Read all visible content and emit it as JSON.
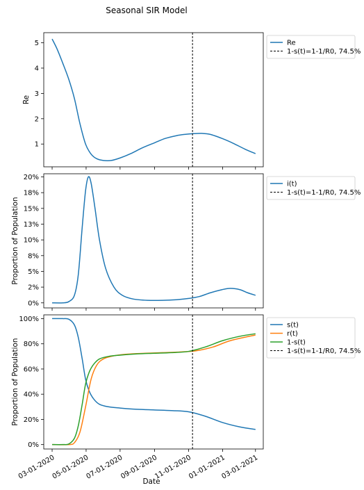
{
  "figure": {
    "title": "Seasonal SIR Model"
  },
  "colors": {
    "blue": "#1f77b4",
    "orange": "#ff7f0e",
    "green": "#2ca02c",
    "black": "#000000"
  },
  "chart_data": [
    {
      "type": "line",
      "ylabel": "Re",
      "ylim": [
        0.1,
        5.4
      ],
      "yticks": [
        1,
        2,
        3,
        4,
        5
      ],
      "ytick_labels": [
        "1",
        "2",
        "3",
        "4",
        "5"
      ],
      "legend": {
        "placement": "outside-right",
        "entries": [
          "Re",
          "1-s(t)=1-1/R0, 74.5%"
        ]
      },
      "vline": {
        "x": "2020-11-08",
        "label": "1-s(t)=1-1/R0, 74.5%"
      },
      "series": [
        {
          "name": "Re",
          "color": "#1f77b4",
          "points": [
            [
              "2020-03-01",
              5.15
            ],
            [
              "2020-03-10",
              4.75
            ],
            [
              "2020-03-20",
              4.2
            ],
            [
              "2020-03-31",
              3.55
            ],
            [
              "2020-04-10",
              2.8
            ],
            [
              "2020-04-20",
              1.8
            ],
            [
              "2020-04-30",
              1.0
            ],
            [
              "2020-05-10",
              0.6
            ],
            [
              "2020-05-20",
              0.42
            ],
            [
              "2020-06-01",
              0.35
            ],
            [
              "2020-06-15",
              0.35
            ],
            [
              "2020-07-01",
              0.45
            ],
            [
              "2020-07-20",
              0.62
            ],
            [
              "2020-08-10",
              0.85
            ],
            [
              "2020-09-01",
              1.05
            ],
            [
              "2020-09-20",
              1.22
            ],
            [
              "2020-10-10",
              1.33
            ],
            [
              "2020-10-25",
              1.38
            ],
            [
              "2020-11-10",
              1.41
            ],
            [
              "2020-11-25",
              1.42
            ],
            [
              "2020-12-10",
              1.38
            ],
            [
              "2020-12-31",
              1.22
            ],
            [
              "2021-01-20",
              1.03
            ],
            [
              "2021-02-10",
              0.8
            ],
            [
              "2021-03-01",
              0.62
            ]
          ]
        }
      ]
    },
    {
      "type": "line",
      "ylabel": "Proportion of Population",
      "ylim": [
        -0.008,
        0.205
      ],
      "yticks": [
        0,
        0.025,
        0.05,
        0.075,
        0.1,
        0.125,
        0.15,
        0.175,
        0.2
      ],
      "ytick_labels": [
        "0%",
        "2%",
        "5%",
        "8%",
        "10%",
        "13%",
        "15%",
        "18%",
        "20%"
      ],
      "legend": {
        "placement": "outside-right",
        "entries": [
          "i(t)",
          "1-s(t)=1-1/R0, 74.5%"
        ]
      },
      "vline": {
        "x": "2020-11-08",
        "label": "1-s(t)=1-1/R0, 74.5%"
      },
      "series": [
        {
          "name": "i(t)",
          "color": "#1f77b4",
          "points": [
            [
              "2020-03-01",
              0.0
            ],
            [
              "2020-03-20",
              0.0
            ],
            [
              "2020-03-31",
              0.002
            ],
            [
              "2020-04-10",
              0.012
            ],
            [
              "2020-04-17",
              0.045
            ],
            [
              "2020-04-24",
              0.12
            ],
            [
              "2020-04-30",
              0.178
            ],
            [
              "2020-05-05",
              0.2
            ],
            [
              "2020-05-10",
              0.19
            ],
            [
              "2020-05-17",
              0.15
            ],
            [
              "2020-05-25",
              0.1
            ],
            [
              "2020-06-05",
              0.055
            ],
            [
              "2020-06-20",
              0.025
            ],
            [
              "2020-07-05",
              0.012
            ],
            [
              "2020-07-25",
              0.006
            ],
            [
              "2020-08-20",
              0.004
            ],
            [
              "2020-09-15",
              0.004
            ],
            [
              "2020-10-10",
              0.005
            ],
            [
              "2020-11-01",
              0.007
            ],
            [
              "2020-11-20",
              0.01
            ],
            [
              "2020-12-10",
              0.016
            ],
            [
              "2020-12-31",
              0.021
            ],
            [
              "2021-01-15",
              0.023
            ],
            [
              "2021-02-01",
              0.021
            ],
            [
              "2021-02-15",
              0.016
            ],
            [
              "2021-03-01",
              0.012
            ]
          ]
        }
      ]
    },
    {
      "type": "line",
      "xlabel": "Date",
      "ylabel": "Proportion of Population",
      "ylim": [
        -0.035,
        1.03
      ],
      "yticks": [
        0,
        0.2,
        0.4,
        0.6,
        0.8,
        1.0
      ],
      "ytick_labels": [
        "0%",
        "20%",
        "40%",
        "60%",
        "80%",
        "100%"
      ],
      "legend": {
        "placement": "outside-right",
        "entries": [
          "s(t)",
          "r(t)",
          "1-s(t)",
          "1-s(t)=1-1/R0, 74.5%"
        ]
      },
      "vline": {
        "x": "2020-11-08",
        "label": "1-s(t)=1-1/R0, 74.5%"
      },
      "xticks": [
        "2020-03-01",
        "2020-05-01",
        "2020-07-01",
        "2020-09-01",
        "2020-11-01",
        "2021-01-01",
        "2021-03-01"
      ],
      "xtick_labels": [
        "03-01-2020",
        "05-01-2020",
        "07-01-2020",
        "09-01-2020",
        "11-01-2020",
        "01-01-2021",
        "03-01-2021"
      ],
      "series": [
        {
          "name": "s(t)",
          "color": "#1f77b4",
          "points": [
            [
              "2020-03-01",
              1.0
            ],
            [
              "2020-03-20",
              1.0
            ],
            [
              "2020-03-31",
              0.995
            ],
            [
              "2020-04-10",
              0.95
            ],
            [
              "2020-04-17",
              0.85
            ],
            [
              "2020-04-24",
              0.68
            ],
            [
              "2020-04-30",
              0.52
            ],
            [
              "2020-05-07",
              0.42
            ],
            [
              "2020-05-15",
              0.36
            ],
            [
              "2020-05-25",
              0.32
            ],
            [
              "2020-06-10",
              0.3
            ],
            [
              "2020-07-01",
              0.29
            ],
            [
              "2020-08-01",
              0.28
            ],
            [
              "2020-09-01",
              0.275
            ],
            [
              "2020-10-01",
              0.27
            ],
            [
              "2020-11-01",
              0.26
            ],
            [
              "2020-12-01",
              0.225
            ],
            [
              "2021-01-01",
              0.175
            ],
            [
              "2021-02-01",
              0.14
            ],
            [
              "2021-03-01",
              0.12
            ]
          ]
        },
        {
          "name": "r(t)",
          "color": "#ff7f0e",
          "points": [
            [
              "2020-03-01",
              0.0
            ],
            [
              "2020-03-31",
              0.0
            ],
            [
              "2020-04-10",
              0.015
            ],
            [
              "2020-04-20",
              0.1
            ],
            [
              "2020-04-30",
              0.3
            ],
            [
              "2020-05-10",
              0.52
            ],
            [
              "2020-05-20",
              0.63
            ],
            [
              "2020-06-01",
              0.68
            ],
            [
              "2020-06-20",
              0.705
            ],
            [
              "2020-07-15",
              0.718
            ],
            [
              "2020-08-15",
              0.725
            ],
            [
              "2020-09-15",
              0.73
            ],
            [
              "2020-10-15",
              0.735
            ],
            [
              "2020-11-15",
              0.745
            ],
            [
              "2020-12-15",
              0.775
            ],
            [
              "2021-01-15",
              0.825
            ],
            [
              "2021-03-01",
              0.87
            ]
          ]
        },
        {
          "name": "1-s(t)",
          "color": "#2ca02c",
          "points": [
            [
              "2020-03-01",
              0.0
            ],
            [
              "2020-03-20",
              0.0
            ],
            [
              "2020-03-31",
              0.005
            ],
            [
              "2020-04-10",
              0.05
            ],
            [
              "2020-04-17",
              0.15
            ],
            [
              "2020-04-24",
              0.32
            ],
            [
              "2020-04-30",
              0.48
            ],
            [
              "2020-05-07",
              0.58
            ],
            [
              "2020-05-15",
              0.64
            ],
            [
              "2020-05-25",
              0.68
            ],
            [
              "2020-06-10",
              0.7
            ],
            [
              "2020-07-01",
              0.71
            ],
            [
              "2020-08-01",
              0.72
            ],
            [
              "2020-09-01",
              0.725
            ],
            [
              "2020-10-01",
              0.73
            ],
            [
              "2020-11-01",
              0.74
            ],
            [
              "2020-12-01",
              0.775
            ],
            [
              "2021-01-01",
              0.825
            ],
            [
              "2021-02-01",
              0.86
            ],
            [
              "2021-03-01",
              0.88
            ]
          ]
        }
      ]
    }
  ]
}
